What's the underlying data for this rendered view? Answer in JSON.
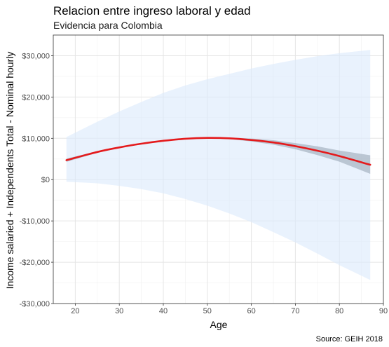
{
  "chart_data": {
    "type": "line",
    "title": "Relacion entre ingreso laboral y edad",
    "subtitle": "Evidencia para Colombia",
    "xlabel": "Age",
    "ylabel": "Income salaried + Independents Total - Nominal hourly",
    "caption": "Source: GEIH 2018",
    "xlim": [
      15,
      90
    ],
    "ylim": [
      -30000,
      35000
    ],
    "x_ticks": [
      20,
      30,
      40,
      50,
      60,
      70,
      80,
      90
    ],
    "y_ticks": [
      -30000,
      -20000,
      -10000,
      0,
      10000,
      20000,
      30000
    ],
    "y_tick_labels": [
      "-$30,000",
      "-$20,000",
      "-$10,000",
      "$0",
      "$10,000",
      "$20,000",
      "$30,000"
    ],
    "grid": true,
    "legend": "none",
    "series": [
      {
        "kind": "fit_line",
        "color": "#e41a1c",
        "x": [
          18,
          25,
          30,
          35,
          40,
          45,
          50,
          55,
          60,
          65,
          70,
          75,
          80,
          87
        ],
        "y": [
          4700,
          6700,
          7800,
          8700,
          9400,
          9900,
          10100,
          10000,
          9600,
          9000,
          8100,
          7000,
          5700,
          3600
        ],
        "ci_low": [
          4300,
          6500,
          7650,
          8600,
          9300,
          9800,
          10000,
          9800,
          9250,
          8450,
          7350,
          5950,
          4350,
          1400
        ],
        "ci_high": [
          5100,
          6900,
          7950,
          8800,
          9500,
          10000,
          10200,
          10200,
          9950,
          9550,
          8850,
          8050,
          7050,
          5900
        ]
      },
      {
        "kind": "prediction_band",
        "color": "#dbeafb",
        "x": [
          18,
          25,
          30,
          35,
          40,
          45,
          50,
          55,
          60,
          65,
          70,
          75,
          80,
          87
        ],
        "low": [
          -500,
          -900,
          -1500,
          -2300,
          -3300,
          -4700,
          -6300,
          -8200,
          -10300,
          -12700,
          -15200,
          -17900,
          -20700,
          -24300
        ],
        "high": [
          10300,
          14000,
          16500,
          18800,
          21000,
          22800,
          24300,
          25600,
          26900,
          28000,
          29000,
          29900,
          30600,
          31400
        ]
      }
    ]
  }
}
